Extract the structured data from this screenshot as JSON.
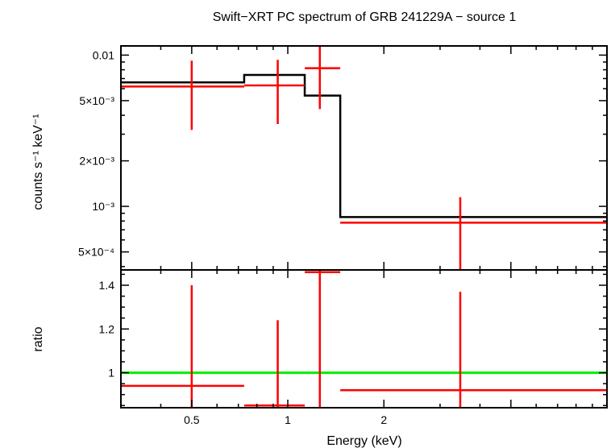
{
  "chart_data": [
    {
      "type": "line",
      "title": "Swift−XRT PC spectrum of GRB 241229A − source 1",
      "xlabel": "",
      "ylabel": "counts s⁻¹ keV⁻¹",
      "xscale": "log",
      "yscale": "log",
      "xlim": [
        0.3,
        10
      ],
      "ylim": [
        0.00038,
        0.0115
      ],
      "yticks": [
        {
          "value": 0.01,
          "label": "0.01"
        },
        {
          "value": 0.005,
          "label": "5×10⁻³"
        },
        {
          "value": 0.002,
          "label": "2×10⁻³"
        },
        {
          "value": 0.001,
          "label": "10⁻³"
        },
        {
          "value": 0.0005,
          "label": "5×10⁻⁴"
        }
      ],
      "model": {
        "color": "#000000",
        "steps": [
          {
            "x0": 0.3,
            "x1": 0.73,
            "y": 0.0066
          },
          {
            "x0": 0.73,
            "x1": 1.13,
            "y": 0.0074
          },
          {
            "x0": 1.13,
            "x1": 1.46,
            "y": 0.0054
          },
          {
            "x0": 1.46,
            "x1": 10,
            "y": 0.00085
          }
        ]
      },
      "data": {
        "color": "#ff0000",
        "points": [
          {
            "x": 0.5,
            "xlo": 0.3,
            "xhi": 0.73,
            "y": 0.0062,
            "ylo": 0.0032,
            "yhi": 0.0092
          },
          {
            "x": 0.93,
            "xlo": 0.73,
            "xhi": 1.13,
            "y": 0.0063,
            "ylo": 0.0035,
            "yhi": 0.0093
          },
          {
            "x": 1.26,
            "xlo": 1.13,
            "xhi": 1.46,
            "y": 0.0082,
            "ylo": 0.0044,
            "yhi": 0.0115
          },
          {
            "x": 3.47,
            "xlo": 1.46,
            "xhi": 10,
            "y": 0.00078,
            "ylo": 0.00038,
            "yhi": 0.00115
          }
        ]
      }
    },
    {
      "type": "scatter",
      "title": "",
      "xlabel": "Energy (keV)",
      "ylabel": "ratio",
      "xscale": "log",
      "yscale": "linear",
      "xlim": [
        0.3,
        10
      ],
      "ylim": [
        0.84,
        1.47
      ],
      "xticks": [
        {
          "value": 0.5,
          "label": "0.5"
        },
        {
          "value": 1,
          "label": "1"
        },
        {
          "value": 2,
          "label": "2"
        }
      ],
      "yticks": [
        {
          "value": 1.4,
          "label": "1.4"
        },
        {
          "value": 1.2,
          "label": "1.2"
        },
        {
          "value": 1,
          "label": "1"
        }
      ],
      "reference_line": {
        "y": 1,
        "color": "#00ee00"
      },
      "data": {
        "color": "#ff0000",
        "points": [
          {
            "x": 0.5,
            "xlo": 0.3,
            "xhi": 0.73,
            "y": 0.94,
            "ylo": 0.84,
            "yhi": 1.4
          },
          {
            "x": 0.93,
            "xlo": 0.73,
            "xhi": 1.13,
            "y": 0.85,
            "ylo": 0.84,
            "yhi": 1.24
          },
          {
            "x": 1.26,
            "xlo": 1.13,
            "xhi": 1.46,
            "y": 1.46,
            "ylo": 0.84,
            "yhi": 1.47
          },
          {
            "x": 3.47,
            "xlo": 1.46,
            "xhi": 10,
            "y": 0.92,
            "ylo": 0.84,
            "yhi": 1.37
          }
        ]
      }
    }
  ]
}
